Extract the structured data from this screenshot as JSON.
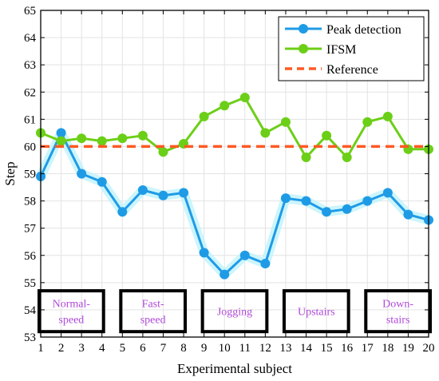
{
  "chart_data": {
    "type": "line",
    "xlabel": "Experimental subject",
    "ylabel": "Step",
    "x": [
      1,
      2,
      3,
      4,
      5,
      6,
      7,
      8,
      9,
      10,
      11,
      12,
      13,
      14,
      15,
      16,
      17,
      18,
      19,
      20
    ],
    "xlim": [
      1,
      20
    ],
    "ylim": [
      53,
      65
    ],
    "y_ticks": [
      53,
      54,
      55,
      56,
      57,
      58,
      59,
      60,
      61,
      62,
      63,
      64,
      65
    ],
    "grid": true,
    "legend_position": "top-right",
    "series": [
      {
        "name": "Peak detection",
        "color": "#1f9be6",
        "style": "solid-with-markers",
        "values": [
          58.9,
          60.5,
          59.0,
          58.7,
          57.6,
          58.4,
          58.2,
          58.3,
          56.1,
          55.3,
          56.0,
          55.7,
          58.1,
          58.0,
          57.6,
          57.7,
          58.0,
          58.3,
          57.5,
          57.3
        ]
      },
      {
        "name": "IFSM",
        "color": "#6ccf17",
        "style": "solid-with-markers",
        "values": [
          60.5,
          60.2,
          60.3,
          60.2,
          60.3,
          60.4,
          59.8,
          60.1,
          61.1,
          61.5,
          61.8,
          60.5,
          60.9,
          59.6,
          60.4,
          59.6,
          60.9,
          61.1,
          59.9,
          59.9
        ]
      },
      {
        "name": "Reference",
        "color": "#ff5a24",
        "style": "dashed",
        "values": [
          60,
          60,
          60,
          60,
          60,
          60,
          60,
          60,
          60,
          60,
          60,
          60,
          60,
          60,
          60,
          60,
          60,
          60,
          60,
          60
        ]
      }
    ],
    "group_boxes": [
      {
        "lines": [
          "Normal-",
          "speed"
        ],
        "x_range": [
          1,
          4
        ]
      },
      {
        "lines": [
          "Fast-",
          "speed"
        ],
        "x_range": [
          5,
          8
        ]
      },
      {
        "lines": [
          "Jogging"
        ],
        "x_range": [
          9,
          12
        ]
      },
      {
        "lines": [
          "Upstairs"
        ],
        "x_range": [
          13,
          16
        ]
      },
      {
        "lines": [
          "Down-",
          "stairs"
        ],
        "x_range": [
          17,
          20
        ]
      }
    ],
    "group_box_y_range": [
      53.2,
      54.7
    ],
    "group_text_color": "#b04ad8",
    "group_box_color": "#000000"
  }
}
